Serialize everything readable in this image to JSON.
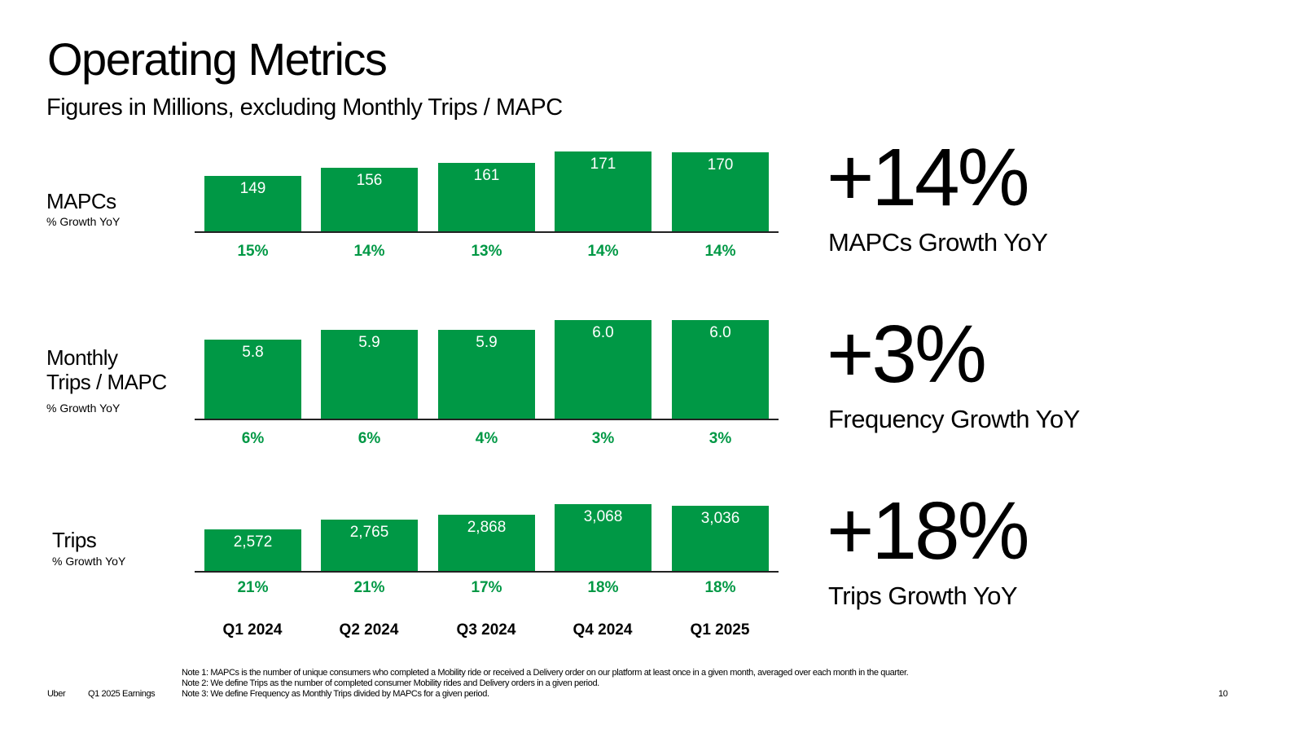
{
  "title": "Operating Metrics",
  "subtitle": "Figures in Millions, excluding Monthly Trips / MAPC",
  "chart_data": [
    {
      "type": "bar",
      "label": "MAPCs",
      "sublabel": "% Growth YoY",
      "categories": [
        "Q1 2024",
        "Q2 2024",
        "Q3 2024",
        "Q4 2024",
        "Q1 2025"
      ],
      "values": [
        149,
        156,
        161,
        171,
        170
      ],
      "value_labels": [
        "149",
        "156",
        "161",
        "171",
        "170"
      ],
      "growth": [
        "15%",
        "14%",
        "13%",
        "14%",
        "14%"
      ],
      "color": "#009845"
    },
    {
      "type": "bar",
      "label_line1": "Monthly",
      "label_line2": "Trips / MAPC",
      "sublabel": "% Growth YoY",
      "categories": [
        "Q1 2024",
        "Q2 2024",
        "Q3 2024",
        "Q4 2024",
        "Q1 2025"
      ],
      "values": [
        5.8,
        5.9,
        5.9,
        6.0,
        6.0
      ],
      "value_labels": [
        "5.8",
        "5.9",
        "5.9",
        "6.0",
        "6.0"
      ],
      "growth": [
        "6%",
        "6%",
        "4%",
        "3%",
        "3%"
      ],
      "color": "#009845"
    },
    {
      "type": "bar",
      "label": "Trips",
      "sublabel": "% Growth YoY",
      "categories": [
        "Q1 2024",
        "Q2 2024",
        "Q3 2024",
        "Q4 2024",
        "Q1 2025"
      ],
      "values": [
        2572,
        2765,
        2868,
        3068,
        3036
      ],
      "value_labels": [
        "2,572",
        "2,765",
        "2,868",
        "3,068",
        "3,036"
      ],
      "growth": [
        "21%",
        "21%",
        "17%",
        "18%",
        "18%"
      ],
      "color": "#009845"
    }
  ],
  "categories": [
    "Q1 2024",
    "Q2 2024",
    "Q3 2024",
    "Q4 2024",
    "Q1 2025"
  ],
  "highlights": [
    {
      "value": "+14%",
      "label": "MAPCs Growth YoY"
    },
    {
      "value": "+3%",
      "label": "Frequency Growth YoY"
    },
    {
      "value": "+18%",
      "label": "Trips Growth YoY"
    }
  ],
  "footer": {
    "brand": "Uber",
    "report": "Q1 2025 Earnings",
    "notes": [
      "Note 1: MAPCs is the number of unique consumers who completed a Mobility ride or received a Delivery order on our platform at least once in a given month, averaged over each month in the quarter.",
      "Note 2: We define Trips as the number of completed consumer Mobility rides and Delivery orders in a given period.",
      "Note 3: We define Frequency as Monthly Trips divided by MAPCs for a given period."
    ],
    "page": "10"
  }
}
